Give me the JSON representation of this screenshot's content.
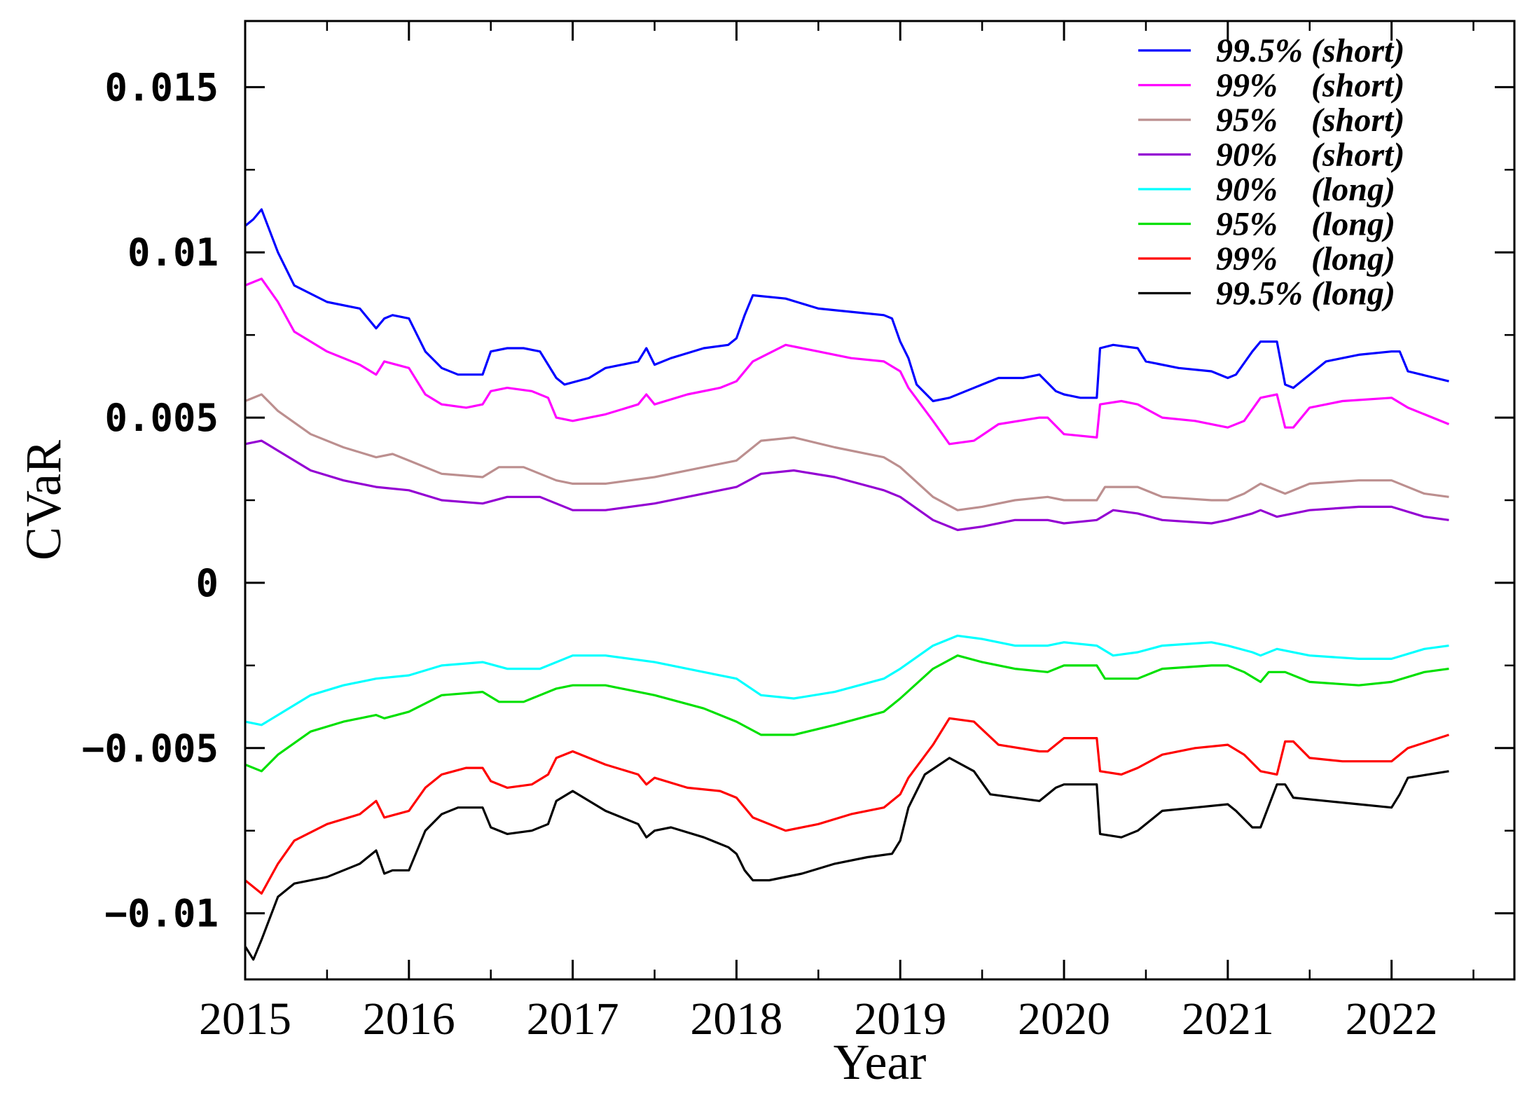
{
  "chart_data": {
    "type": "line",
    "title": "",
    "xlabel": "Year",
    "ylabel": "CVaR",
    "xlim": [
      2015.0,
      2022.75
    ],
    "ylim": [
      -0.012,
      0.017
    ],
    "x_ticks": [
      {
        "value": 2015,
        "label": "2015"
      },
      {
        "value": 2016,
        "label": "2016"
      },
      {
        "value": 2017,
        "label": "2017"
      },
      {
        "value": 2018,
        "label": "2018"
      },
      {
        "value": 2019,
        "label": "2019"
      },
      {
        "value": 2020,
        "label": "2020"
      },
      {
        "value": 2021,
        "label": "2021"
      },
      {
        "value": 2022,
        "label": "2022"
      }
    ],
    "y_ticks": [
      {
        "value": 0.015,
        "label": "0.015"
      },
      {
        "value": 0.01,
        "label": "0.01"
      },
      {
        "value": 0.005,
        "label": "0.005"
      },
      {
        "value": 0,
        "label": "0"
      },
      {
        "value": -0.005,
        "label": "−0.005"
      },
      {
        "value": -0.01,
        "label": "−0.01"
      }
    ],
    "grid": false,
    "legend_position": "top-right",
    "series": [
      {
        "name": "99.5% (short)",
        "color": "#0000ff",
        "x": [
          2015.0,
          2015.05,
          2015.1,
          2015.2,
          2015.3,
          2015.5,
          2015.7,
          2015.8,
          2015.85,
          2015.9,
          2016.0,
          2016.1,
          2016.2,
          2016.3,
          2016.45,
          2016.5,
          2016.6,
          2016.7,
          2016.8,
          2016.9,
          2016.95,
          2017.1,
          2017.2,
          2017.4,
          2017.45,
          2017.5,
          2017.6,
          2017.8,
          2017.95,
          2018.0,
          2018.05,
          2018.1,
          2018.3,
          2018.5,
          2018.7,
          2018.9,
          2018.95,
          2019.0,
          2019.05,
          2019.1,
          2019.2,
          2019.3,
          2019.5,
          2019.6,
          2019.75,
          2019.85,
          2019.95,
          2020.0,
          2020.1,
          2020.2,
          2020.22,
          2020.3,
          2020.45,
          2020.5,
          2020.7,
          2020.9,
          2021.0,
          2021.05,
          2021.15,
          2021.2,
          2021.3,
          2021.35,
          2021.4,
          2021.6,
          2021.8,
          2022.0,
          2022.05,
          2022.1,
          2022.35
        ],
        "y": [
          0.0108,
          0.011,
          0.0113,
          0.01,
          0.009,
          0.0085,
          0.0083,
          0.0077,
          0.008,
          0.0081,
          0.008,
          0.007,
          0.0065,
          0.0063,
          0.0063,
          0.007,
          0.0071,
          0.0071,
          0.007,
          0.0062,
          0.006,
          0.0062,
          0.0065,
          0.0067,
          0.0071,
          0.0066,
          0.0068,
          0.0071,
          0.0072,
          0.0074,
          0.0081,
          0.0087,
          0.0086,
          0.0083,
          0.0082,
          0.0081,
          0.008,
          0.0073,
          0.0068,
          0.006,
          0.0055,
          0.0056,
          0.006,
          0.0062,
          0.0062,
          0.0063,
          0.0058,
          0.0057,
          0.0056,
          0.0056,
          0.0071,
          0.0072,
          0.0071,
          0.0067,
          0.0065,
          0.0064,
          0.0062,
          0.0063,
          0.007,
          0.0073,
          0.0073,
          0.006,
          0.0059,
          0.0067,
          0.0069,
          0.007,
          0.007,
          0.0064,
          0.0061
        ]
      },
      {
        "name": "99%    (short)",
        "color": "#ff00ff",
        "x": [
          2015.0,
          2015.1,
          2015.2,
          2015.3,
          2015.5,
          2015.7,
          2015.8,
          2015.85,
          2016.0,
          2016.1,
          2016.2,
          2016.35,
          2016.45,
          2016.5,
          2016.6,
          2016.75,
          2016.85,
          2016.9,
          2017.0,
          2017.2,
          2017.4,
          2017.45,
          2017.5,
          2017.7,
          2017.9,
          2018.0,
          2018.1,
          2018.3,
          2018.5,
          2018.7,
          2018.9,
          2019.0,
          2019.05,
          2019.2,
          2019.3,
          2019.45,
          2019.6,
          2019.85,
          2019.9,
          2020.0,
          2020.2,
          2020.22,
          2020.35,
          2020.45,
          2020.6,
          2020.8,
          2021.0,
          2021.1,
          2021.2,
          2021.3,
          2021.35,
          2021.4,
          2021.5,
          2021.7,
          2022.0,
          2022.1,
          2022.35
        ],
        "y": [
          0.009,
          0.0092,
          0.0085,
          0.0076,
          0.007,
          0.0066,
          0.0063,
          0.0067,
          0.0065,
          0.0057,
          0.0054,
          0.0053,
          0.0054,
          0.0058,
          0.0059,
          0.0058,
          0.0056,
          0.005,
          0.0049,
          0.0051,
          0.0054,
          0.0057,
          0.0054,
          0.0057,
          0.0059,
          0.0061,
          0.0067,
          0.0072,
          0.007,
          0.0068,
          0.0067,
          0.0064,
          0.0059,
          0.0049,
          0.0042,
          0.0043,
          0.0048,
          0.005,
          0.005,
          0.0045,
          0.0044,
          0.0054,
          0.0055,
          0.0054,
          0.005,
          0.0049,
          0.0047,
          0.0049,
          0.0056,
          0.0057,
          0.0047,
          0.0047,
          0.0053,
          0.0055,
          0.0056,
          0.0053,
          0.0048
        ]
      },
      {
        "name": "95%    (short)",
        "color": "#bc8f8f",
        "x": [
          2015.0,
          2015.1,
          2015.2,
          2015.4,
          2015.6,
          2015.8,
          2015.9,
          2016.0,
          2016.2,
          2016.45,
          2016.55,
          2016.7,
          2016.9,
          2017.0,
          2017.2,
          2017.5,
          2017.8,
          2018.0,
          2018.15,
          2018.35,
          2018.6,
          2018.9,
          2019.0,
          2019.2,
          2019.35,
          2019.5,
          2019.7,
          2019.9,
          2020.0,
          2020.2,
          2020.25,
          2020.45,
          2020.6,
          2020.9,
          2021.0,
          2021.1,
          2021.2,
          2021.25,
          2021.35,
          2021.5,
          2021.8,
          2022.0,
          2022.2,
          2022.35
        ],
        "y": [
          0.0055,
          0.0057,
          0.0052,
          0.0045,
          0.0041,
          0.0038,
          0.0039,
          0.0037,
          0.0033,
          0.0032,
          0.0035,
          0.0035,
          0.0031,
          0.003,
          0.003,
          0.0032,
          0.0035,
          0.0037,
          0.0043,
          0.0044,
          0.0041,
          0.0038,
          0.0035,
          0.0026,
          0.0022,
          0.0023,
          0.0025,
          0.0026,
          0.0025,
          0.0025,
          0.0029,
          0.0029,
          0.0026,
          0.0025,
          0.0025,
          0.0027,
          0.003,
          0.0029,
          0.0027,
          0.003,
          0.0031,
          0.0031,
          0.0027,
          0.0026
        ]
      },
      {
        "name": "90%    (short)",
        "color": "#9400d3",
        "x": [
          2015.0,
          2015.1,
          2015.2,
          2015.4,
          2015.6,
          2015.8,
          2016.0,
          2016.2,
          2016.45,
          2016.6,
          2016.8,
          2017.0,
          2017.2,
          2017.5,
          2017.8,
          2018.0,
          2018.15,
          2018.35,
          2018.6,
          2018.9,
          2019.0,
          2019.2,
          2019.35,
          2019.5,
          2019.7,
          2019.9,
          2020.0,
          2020.2,
          2020.3,
          2020.45,
          2020.6,
          2020.9,
          2021.0,
          2021.15,
          2021.2,
          2021.3,
          2021.5,
          2021.8,
          2022.0,
          2022.2,
          2022.35
        ],
        "y": [
          0.0042,
          0.0043,
          0.004,
          0.0034,
          0.0031,
          0.0029,
          0.0028,
          0.0025,
          0.0024,
          0.0026,
          0.0026,
          0.0022,
          0.0022,
          0.0024,
          0.0027,
          0.0029,
          0.0033,
          0.0034,
          0.0032,
          0.0028,
          0.0026,
          0.0019,
          0.0016,
          0.0017,
          0.0019,
          0.0019,
          0.0018,
          0.0019,
          0.0022,
          0.0021,
          0.0019,
          0.0018,
          0.0019,
          0.0021,
          0.0022,
          0.002,
          0.0022,
          0.0023,
          0.0023,
          0.002,
          0.0019
        ]
      },
      {
        "name": "90%    (long)",
        "color": "#00ffff",
        "x": [
          2015.0,
          2015.1,
          2015.2,
          2015.4,
          2015.6,
          2015.8,
          2016.0,
          2016.2,
          2016.45,
          2016.6,
          2016.8,
          2017.0,
          2017.2,
          2017.5,
          2017.8,
          2018.0,
          2018.15,
          2018.35,
          2018.6,
          2018.9,
          2019.0,
          2019.2,
          2019.35,
          2019.5,
          2019.7,
          2019.9,
          2020.0,
          2020.2,
          2020.3,
          2020.45,
          2020.6,
          2020.9,
          2021.0,
          2021.15,
          2021.2,
          2021.3,
          2021.5,
          2021.8,
          2022.0,
          2022.2,
          2022.35
        ],
        "y": [
          -0.0042,
          -0.0043,
          -0.004,
          -0.0034,
          -0.0031,
          -0.0029,
          -0.0028,
          -0.0025,
          -0.0024,
          -0.0026,
          -0.0026,
          -0.0022,
          -0.0022,
          -0.0024,
          -0.0027,
          -0.0029,
          -0.0034,
          -0.0035,
          -0.0033,
          -0.0029,
          -0.0026,
          -0.0019,
          -0.0016,
          -0.0017,
          -0.0019,
          -0.0019,
          -0.0018,
          -0.0019,
          -0.0022,
          -0.0021,
          -0.0019,
          -0.0018,
          -0.0019,
          -0.0021,
          -0.0022,
          -0.002,
          -0.0022,
          -0.0023,
          -0.0023,
          -0.002,
          -0.0019
        ]
      },
      {
        "name": "95%    (long)",
        "color": "#00e000",
        "x": [
          2015.0,
          2015.1,
          2015.2,
          2015.4,
          2015.6,
          2015.8,
          2015.85,
          2016.0,
          2016.2,
          2016.45,
          2016.55,
          2016.7,
          2016.9,
          2017.0,
          2017.2,
          2017.5,
          2017.8,
          2018.0,
          2018.15,
          2018.35,
          2018.6,
          2018.9,
          2019.0,
          2019.2,
          2019.35,
          2019.5,
          2019.7,
          2019.9,
          2020.0,
          2020.2,
          2020.25,
          2020.45,
          2020.6,
          2020.9,
          2021.0,
          2021.1,
          2021.2,
          2021.25,
          2021.35,
          2021.5,
          2021.8,
          2022.0,
          2022.2,
          2022.35
        ],
        "y": [
          -0.0055,
          -0.0057,
          -0.0052,
          -0.0045,
          -0.0042,
          -0.004,
          -0.0041,
          -0.0039,
          -0.0034,
          -0.0033,
          -0.0036,
          -0.0036,
          -0.0032,
          -0.0031,
          -0.0031,
          -0.0034,
          -0.0038,
          -0.0042,
          -0.0046,
          -0.0046,
          -0.0043,
          -0.0039,
          -0.0035,
          -0.0026,
          -0.0022,
          -0.0024,
          -0.0026,
          -0.0027,
          -0.0025,
          -0.0025,
          -0.0029,
          -0.0029,
          -0.0026,
          -0.0025,
          -0.0025,
          -0.0027,
          -0.003,
          -0.0027,
          -0.0027,
          -0.003,
          -0.0031,
          -0.003,
          -0.0027,
          -0.0026
        ]
      },
      {
        "name": "99%    (long)",
        "color": "#ff0000",
        "x": [
          2015.0,
          2015.1,
          2015.2,
          2015.3,
          2015.5,
          2015.7,
          2015.8,
          2015.85,
          2016.0,
          2016.1,
          2016.2,
          2016.35,
          2016.45,
          2016.5,
          2016.6,
          2016.75,
          2016.85,
          2016.9,
          2017.0,
          2017.2,
          2017.4,
          2017.45,
          2017.5,
          2017.7,
          2017.9,
          2018.0,
          2018.1,
          2018.3,
          2018.5,
          2018.7,
          2018.9,
          2019.0,
          2019.05,
          2019.2,
          2019.3,
          2019.45,
          2019.6,
          2019.85,
          2019.9,
          2020.0,
          2020.2,
          2020.22,
          2020.35,
          2020.45,
          2020.6,
          2020.8,
          2021.0,
          2021.1,
          2021.2,
          2021.3,
          2021.35,
          2021.4,
          2021.5,
          2021.7,
          2022.0,
          2022.1,
          2022.35
        ],
        "y": [
          -0.009,
          -0.0094,
          -0.0085,
          -0.0078,
          -0.0073,
          -0.007,
          -0.0066,
          -0.0071,
          -0.0069,
          -0.0062,
          -0.0058,
          -0.0056,
          -0.0056,
          -0.006,
          -0.0062,
          -0.0061,
          -0.0058,
          -0.0053,
          -0.0051,
          -0.0055,
          -0.0058,
          -0.0061,
          -0.0059,
          -0.0062,
          -0.0063,
          -0.0065,
          -0.0071,
          -0.0075,
          -0.0073,
          -0.007,
          -0.0068,
          -0.0064,
          -0.0059,
          -0.0049,
          -0.0041,
          -0.0042,
          -0.0049,
          -0.0051,
          -0.0051,
          -0.0047,
          -0.0047,
          -0.0057,
          -0.0058,
          -0.0056,
          -0.0052,
          -0.005,
          -0.0049,
          -0.0052,
          -0.0057,
          -0.0058,
          -0.0048,
          -0.0048,
          -0.0053,
          -0.0054,
          -0.0054,
          -0.005,
          -0.0046
        ]
      },
      {
        "name": "99.5% (long)",
        "color": "#000000",
        "x": [
          2015.0,
          2015.05,
          2015.1,
          2015.2,
          2015.3,
          2015.5,
          2015.7,
          2015.8,
          2015.85,
          2015.9,
          2016.0,
          2016.1,
          2016.2,
          2016.3,
          2016.45,
          2016.5,
          2016.6,
          2016.75,
          2016.85,
          2016.9,
          2017.0,
          2017.2,
          2017.4,
          2017.45,
          2017.5,
          2017.6,
          2017.8,
          2017.95,
          2018.0,
          2018.05,
          2018.1,
          2018.2,
          2018.4,
          2018.6,
          2018.8,
          2018.95,
          2019.0,
          2019.05,
          2019.15,
          2019.3,
          2019.45,
          2019.55,
          2019.7,
          2019.85,
          2019.95,
          2020.0,
          2020.2,
          2020.22,
          2020.35,
          2020.45,
          2020.6,
          2020.8,
          2021.0,
          2021.05,
          2021.15,
          2021.2,
          2021.3,
          2021.35,
          2021.4,
          2021.6,
          2021.8,
          2022.0,
          2022.05,
          2022.1,
          2022.35
        ],
        "y": [
          -0.011,
          -0.0114,
          -0.0108,
          -0.0095,
          -0.0091,
          -0.0089,
          -0.0085,
          -0.0081,
          -0.0088,
          -0.0087,
          -0.0087,
          -0.0075,
          -0.007,
          -0.0068,
          -0.0068,
          -0.0074,
          -0.0076,
          -0.0075,
          -0.0073,
          -0.0066,
          -0.0063,
          -0.0069,
          -0.0073,
          -0.0077,
          -0.0075,
          -0.0074,
          -0.0077,
          -0.008,
          -0.0082,
          -0.0087,
          -0.009,
          -0.009,
          -0.0088,
          -0.0085,
          -0.0083,
          -0.0082,
          -0.0078,
          -0.0068,
          -0.0058,
          -0.0053,
          -0.0057,
          -0.0064,
          -0.0065,
          -0.0066,
          -0.0062,
          -0.0061,
          -0.0061,
          -0.0076,
          -0.0077,
          -0.0075,
          -0.0069,
          -0.0068,
          -0.0067,
          -0.0069,
          -0.0074,
          -0.0074,
          -0.0061,
          -0.0061,
          -0.0065,
          -0.0066,
          -0.0067,
          -0.0068,
          -0.0064,
          -0.0059,
          -0.0057
        ]
      }
    ]
  }
}
